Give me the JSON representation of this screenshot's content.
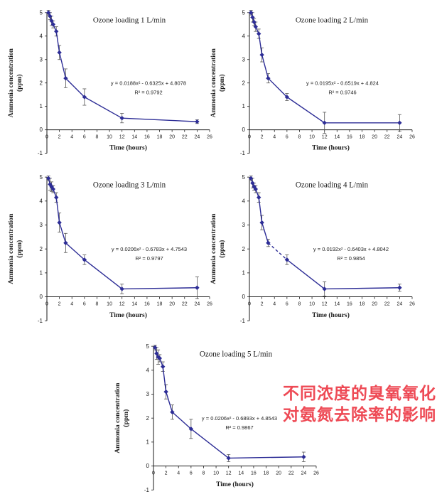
{
  "page": {
    "background": "#ffffff"
  },
  "colors": {
    "series": "#2d2d96",
    "error_bar": "#555555",
    "axis": "#1a1a1a",
    "text": "#1a1a1a",
    "annotation": "#ee4a55"
  },
  "annotation": {
    "line1": "不同浓度的臭氧氧化",
    "line2": "对氨氮去除率的影响"
  },
  "chart_data": [
    {
      "type": "line",
      "title": "Ozone loading 1 L/min",
      "xlabel": "Time (hours)",
      "ylabel_line1": "Ammonia concentration",
      "ylabel_line2": "(ppm)",
      "xlim": [
        0,
        26
      ],
      "ylim": [
        -1,
        5
      ],
      "x_ticks": [
        0,
        2,
        4,
        6,
        8,
        10,
        12,
        14,
        16,
        18,
        20,
        22,
        24,
        26
      ],
      "y_ticks": [
        -1,
        0,
        1,
        2,
        3,
        4,
        5
      ],
      "x": [
        0.25,
        0.5,
        0.75,
        1,
        1.5,
        2,
        3,
        6,
        12,
        24
      ],
      "y": [
        5.0,
        4.85,
        4.65,
        4.5,
        4.2,
        3.3,
        2.2,
        1.4,
        0.5,
        0.35
      ],
      "yerr": [
        0.1,
        0.15,
        0.2,
        0.15,
        0.2,
        0.3,
        0.4,
        0.35,
        0.2,
        0.08
      ],
      "equation": "y = 0.0188x² - 0.6325x + 4.8078",
      "r_squared": "R² = 0.9792",
      "eq_x": 207
    },
    {
      "type": "line",
      "title": "Ozone loading 2 L/min",
      "xlabel": "Time (hours)",
      "ylabel_line1": "Ammonia concentration",
      "ylabel_line2": "(ppm)",
      "xlim": [
        0,
        26
      ],
      "ylim": [
        -1,
        5
      ],
      "x_ticks": [
        0,
        2,
        4,
        6,
        8,
        10,
        12,
        14,
        16,
        18,
        20,
        22,
        24,
        26
      ],
      "y_ticks": [
        -1,
        0,
        1,
        2,
        3,
        4,
        5
      ],
      "x": [
        0.25,
        0.5,
        0.75,
        1,
        1.5,
        2,
        3,
        6,
        12,
        24
      ],
      "y": [
        5.0,
        4.8,
        4.6,
        4.4,
        4.1,
        3.2,
        2.2,
        1.4,
        0.3,
        0.3
      ],
      "yerr": [
        0.1,
        0.2,
        0.15,
        0.2,
        0.2,
        0.3,
        0.2,
        0.15,
        0.45,
        0.35
      ],
      "equation": "y = 0.0195x² - 0.6519x + 4.824",
      "r_squared": "R² = 0.9746",
      "eq_x": 195
    },
    {
      "type": "line",
      "title": "Ozone loading 3 L/min",
      "xlabel": "Time (hours)",
      "ylabel_line1": "Ammonia concentration",
      "ylabel_line2": "(ppm)",
      "xlim": [
        0,
        26
      ],
      "ylim": [
        -1,
        5
      ],
      "x_ticks": [
        0,
        2,
        4,
        6,
        8,
        10,
        12,
        14,
        16,
        18,
        20,
        22,
        24,
        26
      ],
      "y_ticks": [
        -1,
        0,
        1,
        2,
        3,
        4,
        5
      ],
      "x": [
        0.25,
        0.5,
        0.75,
        1,
        1.5,
        2,
        3,
        6,
        12,
        24
      ],
      "y": [
        4.95,
        4.7,
        4.6,
        4.5,
        4.15,
        3.1,
        2.25,
        1.55,
        0.33,
        0.38
      ],
      "yerr": [
        0.1,
        0.25,
        0.2,
        0.15,
        0.2,
        0.4,
        0.4,
        0.2,
        0.2,
        0.45
      ],
      "equation": "y = 0.0206x² - 0.6783x + 4.7543",
      "r_squared": "R² = 0.9797",
      "eq_x": 208
    },
    {
      "type": "line",
      "title": "Ozone loading 4 L/min",
      "xlabel": "Time (hours)",
      "ylabel_line1": "Ammonia concentration",
      "ylabel_line2": "(ppm)",
      "xlim": [
        0,
        26
      ],
      "ylim": [
        -1,
        5
      ],
      "x_ticks": [
        0,
        2,
        4,
        6,
        8,
        10,
        12,
        14,
        16,
        18,
        20,
        22,
        24,
        26
      ],
      "y_ticks": [
        -1,
        0,
        1,
        2,
        3,
        4,
        5
      ],
      "x": [
        0.25,
        0.5,
        0.75,
        1,
        1.5,
        2,
        3,
        6,
        12,
        24
      ],
      "y": [
        4.95,
        4.75,
        4.6,
        4.5,
        4.15,
        3.1,
        2.25,
        1.55,
        0.33,
        0.38
      ],
      "yerr": [
        0.1,
        0.2,
        0.15,
        0.15,
        0.2,
        0.3,
        0.15,
        0.2,
        0.3,
        0.15
      ],
      "equation": "y = 0.0192x² - 0.6403x + 4.8042",
      "r_squared": "R² = 0.9854",
      "eq_x": 207,
      "dashed_segment": [
        3,
        6
      ]
    },
    {
      "type": "line",
      "title": "Ozone loading 5 L/min",
      "xlabel": "Time (hours)",
      "ylabel_line1": "Ammonia concentration",
      "ylabel_line2": "(ppm)",
      "xlim": [
        0,
        26
      ],
      "ylim": [
        -1,
        5
      ],
      "x_ticks": [
        0,
        2,
        4,
        6,
        8,
        10,
        12,
        14,
        16,
        18,
        20,
        22,
        24,
        26
      ],
      "y_ticks": [
        -1,
        0,
        1,
        2,
        3,
        4,
        5
      ],
      "x": [
        0.25,
        0.5,
        0.75,
        1,
        1.5,
        2,
        3,
        6,
        12,
        24
      ],
      "y": [
        4.95,
        4.7,
        4.55,
        4.5,
        4.15,
        3.1,
        2.25,
        1.55,
        0.33,
        0.38
      ],
      "yerr": [
        0.1,
        0.25,
        0.3,
        0.15,
        0.2,
        0.3,
        0.3,
        0.4,
        0.15,
        0.2
      ],
      "equation": "y = 0.0206x² - 0.6893x + 4.8543",
      "r_squared": "R² = 0.9867",
      "eq_x": 185
    }
  ]
}
